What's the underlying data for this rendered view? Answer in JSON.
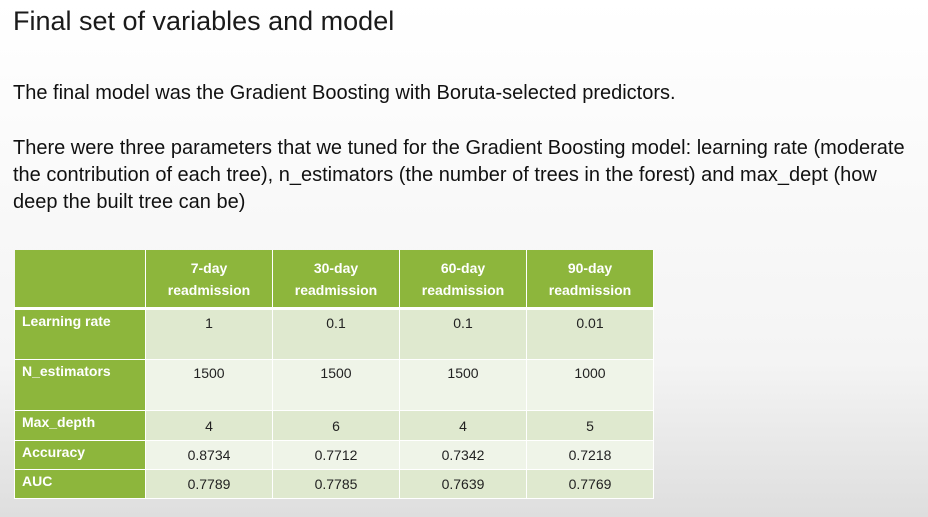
{
  "slide": {
    "title": "Final set of variables and model",
    "paragraph1": "The final model was the Gradient Boosting with Boruta-selected predictors.",
    "paragraph2": "There were three parameters that we tuned for the Gradient Boosting model: learning rate (moderate the contribution of each tree), n_estimators (the number of trees in the forest) and max_dept (how deep the built tree can be)"
  },
  "table": {
    "columns": [
      {
        "line1": "7-day",
        "line2": "readmission"
      },
      {
        "line1": "30-day",
        "line2": "readmission"
      },
      {
        "line1": "60-day",
        "line2": "readmission"
      },
      {
        "line1": "90-day",
        "line2": "readmission"
      }
    ],
    "rows": [
      {
        "label": "Learning rate",
        "values": [
          "1",
          "0.1",
          "0.1",
          "0.01"
        ]
      },
      {
        "label": "N_estimators",
        "values": [
          "1500",
          "1500",
          "1500",
          "1000"
        ]
      },
      {
        "label": "Max_depth",
        "values": [
          "4",
          "6",
          "4",
          "5"
        ]
      },
      {
        "label": "Accuracy",
        "values": [
          "0.8734",
          "0.7712",
          "0.7342",
          "0.7218"
        ]
      },
      {
        "label": "AUC",
        "values": [
          "0.7789",
          "0.7785",
          "0.7639",
          "0.7769"
        ]
      }
    ]
  },
  "colors": {
    "header_green": "#8db63c",
    "row_light": "#dfe9cf",
    "row_lighter": "#eff4e8"
  }
}
